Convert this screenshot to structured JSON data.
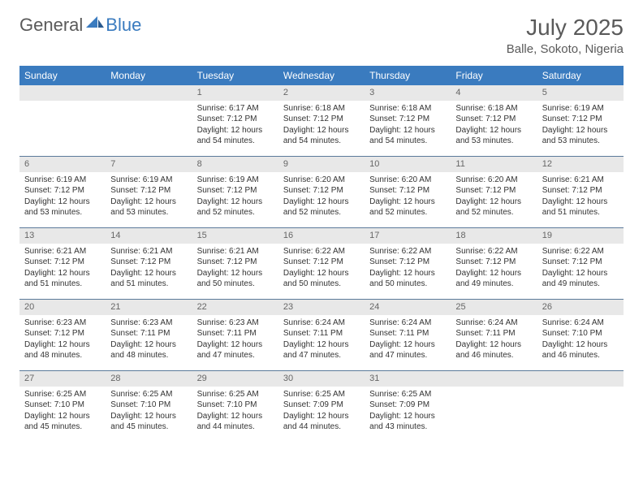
{
  "brand": {
    "general": "General",
    "blue": "Blue"
  },
  "title": "July 2025",
  "location": "Balle, Sokoto, Nigeria",
  "colors": {
    "header_bg": "#3a7bbf",
    "header_text": "#ffffff",
    "daynum_bg": "#e8e8e8",
    "daynum_text": "#666666",
    "border": "#5b7a9a",
    "body_text": "#333333",
    "title_text": "#5a5a5a"
  },
  "dayNames": [
    "Sunday",
    "Monday",
    "Tuesday",
    "Wednesday",
    "Thursday",
    "Friday",
    "Saturday"
  ],
  "startOffset": 2,
  "days": [
    {
      "n": 1,
      "sunrise": "6:17 AM",
      "sunset": "7:12 PM",
      "daylight": "12 hours and 54 minutes."
    },
    {
      "n": 2,
      "sunrise": "6:18 AM",
      "sunset": "7:12 PM",
      "daylight": "12 hours and 54 minutes."
    },
    {
      "n": 3,
      "sunrise": "6:18 AM",
      "sunset": "7:12 PM",
      "daylight": "12 hours and 54 minutes."
    },
    {
      "n": 4,
      "sunrise": "6:18 AM",
      "sunset": "7:12 PM",
      "daylight": "12 hours and 53 minutes."
    },
    {
      "n": 5,
      "sunrise": "6:19 AM",
      "sunset": "7:12 PM",
      "daylight": "12 hours and 53 minutes."
    },
    {
      "n": 6,
      "sunrise": "6:19 AM",
      "sunset": "7:12 PM",
      "daylight": "12 hours and 53 minutes."
    },
    {
      "n": 7,
      "sunrise": "6:19 AM",
      "sunset": "7:12 PM",
      "daylight": "12 hours and 53 minutes."
    },
    {
      "n": 8,
      "sunrise": "6:19 AM",
      "sunset": "7:12 PM",
      "daylight": "12 hours and 52 minutes."
    },
    {
      "n": 9,
      "sunrise": "6:20 AM",
      "sunset": "7:12 PM",
      "daylight": "12 hours and 52 minutes."
    },
    {
      "n": 10,
      "sunrise": "6:20 AM",
      "sunset": "7:12 PM",
      "daylight": "12 hours and 52 minutes."
    },
    {
      "n": 11,
      "sunrise": "6:20 AM",
      "sunset": "7:12 PM",
      "daylight": "12 hours and 52 minutes."
    },
    {
      "n": 12,
      "sunrise": "6:21 AM",
      "sunset": "7:12 PM",
      "daylight": "12 hours and 51 minutes."
    },
    {
      "n": 13,
      "sunrise": "6:21 AM",
      "sunset": "7:12 PM",
      "daylight": "12 hours and 51 minutes."
    },
    {
      "n": 14,
      "sunrise": "6:21 AM",
      "sunset": "7:12 PM",
      "daylight": "12 hours and 51 minutes."
    },
    {
      "n": 15,
      "sunrise": "6:21 AM",
      "sunset": "7:12 PM",
      "daylight": "12 hours and 50 minutes."
    },
    {
      "n": 16,
      "sunrise": "6:22 AM",
      "sunset": "7:12 PM",
      "daylight": "12 hours and 50 minutes."
    },
    {
      "n": 17,
      "sunrise": "6:22 AM",
      "sunset": "7:12 PM",
      "daylight": "12 hours and 50 minutes."
    },
    {
      "n": 18,
      "sunrise": "6:22 AM",
      "sunset": "7:12 PM",
      "daylight": "12 hours and 49 minutes."
    },
    {
      "n": 19,
      "sunrise": "6:22 AM",
      "sunset": "7:12 PM",
      "daylight": "12 hours and 49 minutes."
    },
    {
      "n": 20,
      "sunrise": "6:23 AM",
      "sunset": "7:12 PM",
      "daylight": "12 hours and 48 minutes."
    },
    {
      "n": 21,
      "sunrise": "6:23 AM",
      "sunset": "7:11 PM",
      "daylight": "12 hours and 48 minutes."
    },
    {
      "n": 22,
      "sunrise": "6:23 AM",
      "sunset": "7:11 PM",
      "daylight": "12 hours and 47 minutes."
    },
    {
      "n": 23,
      "sunrise": "6:24 AM",
      "sunset": "7:11 PM",
      "daylight": "12 hours and 47 minutes."
    },
    {
      "n": 24,
      "sunrise": "6:24 AM",
      "sunset": "7:11 PM",
      "daylight": "12 hours and 47 minutes."
    },
    {
      "n": 25,
      "sunrise": "6:24 AM",
      "sunset": "7:11 PM",
      "daylight": "12 hours and 46 minutes."
    },
    {
      "n": 26,
      "sunrise": "6:24 AM",
      "sunset": "7:10 PM",
      "daylight": "12 hours and 46 minutes."
    },
    {
      "n": 27,
      "sunrise": "6:25 AM",
      "sunset": "7:10 PM",
      "daylight": "12 hours and 45 minutes."
    },
    {
      "n": 28,
      "sunrise": "6:25 AM",
      "sunset": "7:10 PM",
      "daylight": "12 hours and 45 minutes."
    },
    {
      "n": 29,
      "sunrise": "6:25 AM",
      "sunset": "7:10 PM",
      "daylight": "12 hours and 44 minutes."
    },
    {
      "n": 30,
      "sunrise": "6:25 AM",
      "sunset": "7:09 PM",
      "daylight": "12 hours and 44 minutes."
    },
    {
      "n": 31,
      "sunrise": "6:25 AM",
      "sunset": "7:09 PM",
      "daylight": "12 hours and 43 minutes."
    }
  ],
  "labels": {
    "sunrise": "Sunrise: ",
    "sunset": "Sunset: ",
    "daylight": "Daylight: "
  }
}
